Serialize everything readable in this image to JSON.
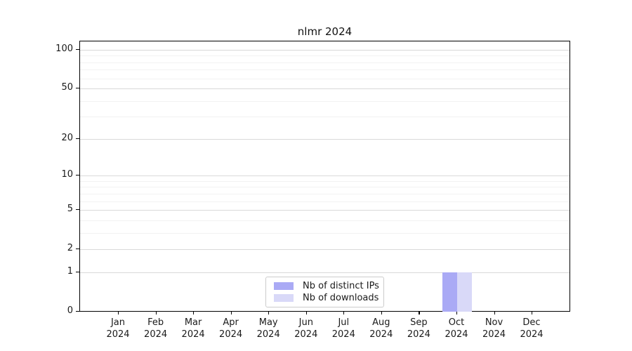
{
  "chart_data": {
    "type": "bar",
    "title": "nlmr 2024",
    "scale": "log1p",
    "categories": [
      {
        "month": "Jan",
        "year": "2024"
      },
      {
        "month": "Feb",
        "year": "2024"
      },
      {
        "month": "Mar",
        "year": "2024"
      },
      {
        "month": "Apr",
        "year": "2024"
      },
      {
        "month": "May",
        "year": "2024"
      },
      {
        "month": "Jun",
        "year": "2024"
      },
      {
        "month": "Jul",
        "year": "2024"
      },
      {
        "month": "Aug",
        "year": "2024"
      },
      {
        "month": "Sep",
        "year": "2024"
      },
      {
        "month": "Oct",
        "year": "2024"
      },
      {
        "month": "Nov",
        "year": "2024"
      },
      {
        "month": "Dec",
        "year": "2024"
      }
    ],
    "series": [
      {
        "name": "Nb of distinct IPs",
        "color": "#aaaaf5",
        "values": [
          0,
          0,
          0,
          0,
          0,
          0,
          0,
          0,
          0,
          1,
          0,
          0
        ]
      },
      {
        "name": "Nb of downloads",
        "color": "#d9d9f8",
        "values": [
          0,
          0,
          0,
          0,
          0,
          0,
          0,
          0,
          0,
          1,
          0,
          0
        ]
      }
    ],
    "xlabel": "",
    "ylabel": "",
    "ylim": [
      0,
      116
    ],
    "y_major_ticks": [
      0,
      1,
      2,
      5,
      10,
      20,
      50,
      100
    ],
    "y_minor_gridlines": [
      3,
      4,
      6,
      7,
      8,
      9,
      30,
      40,
      60,
      70,
      80,
      90
    ],
    "grid": "horizontal",
    "legend_position": "lower center",
    "colors": {
      "grid_major": "#d9d9d9",
      "grid_minor": "#f2f2f2",
      "spine": "#000000",
      "tick_text": "#1a1a1a",
      "background": "#ffffff"
    }
  }
}
